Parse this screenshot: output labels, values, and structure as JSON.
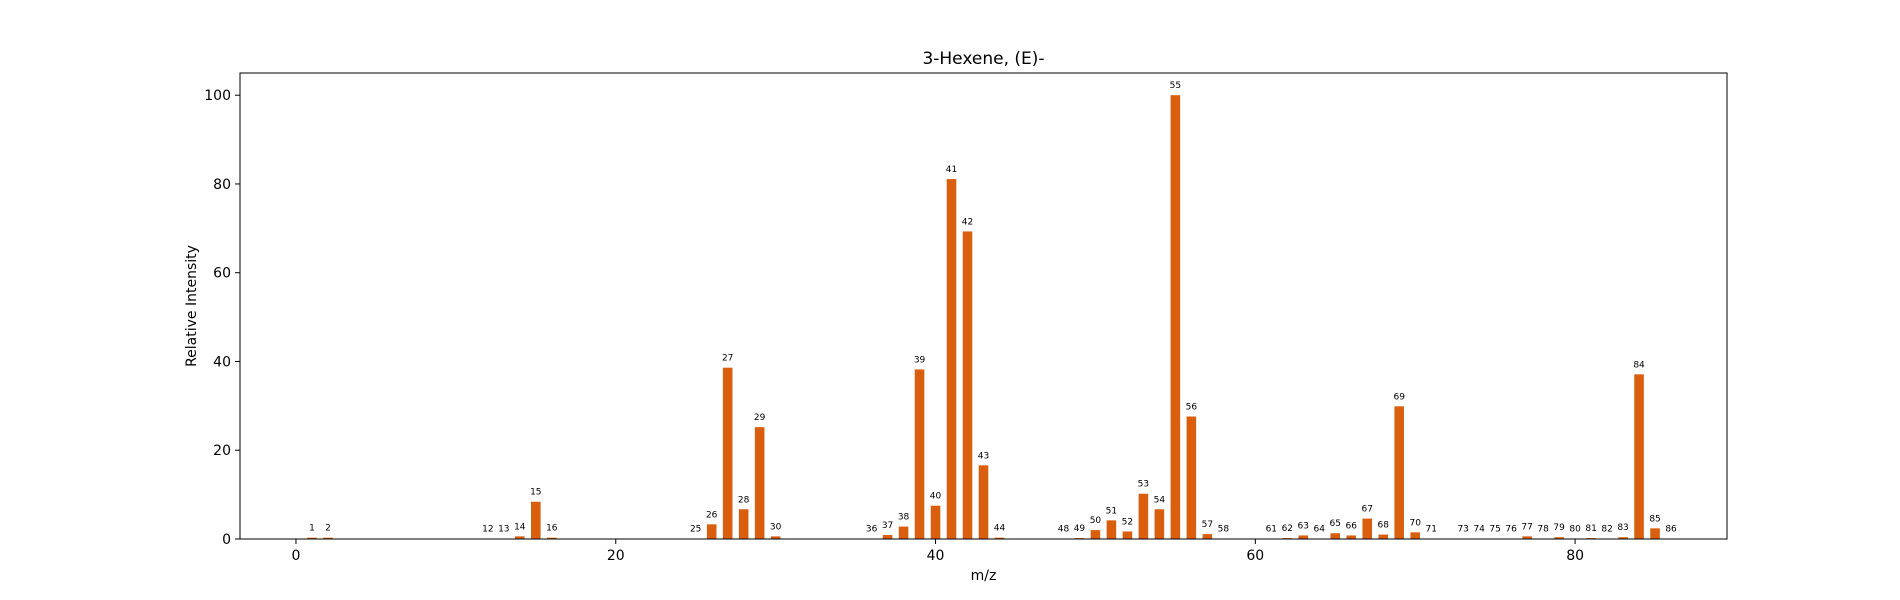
{
  "chart_data": {
    "type": "bar",
    "title": "3-Hexene, (E)-",
    "xlabel": "m/z",
    "ylabel": "Relative Intensity",
    "xlim": [
      -3.5,
      89.5
    ],
    "ylim": [
      0,
      105
    ],
    "xticks": [
      0,
      20,
      40,
      60,
      80
    ],
    "yticks": [
      0,
      20,
      40,
      60,
      80,
      100
    ],
    "grid": false,
    "bar_color": "#d95f0e",
    "x": [
      1,
      2,
      12,
      13,
      14,
      15,
      16,
      25,
      26,
      27,
      28,
      29,
      30,
      36,
      37,
      38,
      39,
      40,
      41,
      42,
      43,
      44,
      48,
      49,
      50,
      51,
      52,
      53,
      54,
      55,
      56,
      57,
      58,
      61,
      62,
      63,
      64,
      65,
      66,
      67,
      68,
      69,
      70,
      71,
      73,
      74,
      75,
      76,
      77,
      78,
      79,
      80,
      81,
      82,
      83,
      84,
      85,
      86
    ],
    "values": [
      0.3,
      0.3,
      0.1,
      0.1,
      0.6,
      8.4,
      0.3,
      0.1,
      3.3,
      38.6,
      6.7,
      25.2,
      0.6,
      0.1,
      0.9,
      2.8,
      38.2,
      7.5,
      81.1,
      69.3,
      16.6,
      0.3,
      0.1,
      0.2,
      2.0,
      4.2,
      1.7,
      10.2,
      6.7,
      100.0,
      27.6,
      1.1,
      0.1,
      0.1,
      0.2,
      0.8,
      0.1,
      1.3,
      0.8,
      4.6,
      1.0,
      29.9,
      1.5,
      0.1,
      0.1,
      0.1,
      0.1,
      0.1,
      0.6,
      0.1,
      0.4,
      0.1,
      0.2,
      0.1,
      0.4,
      37.1,
      2.4,
      0.1
    ]
  }
}
